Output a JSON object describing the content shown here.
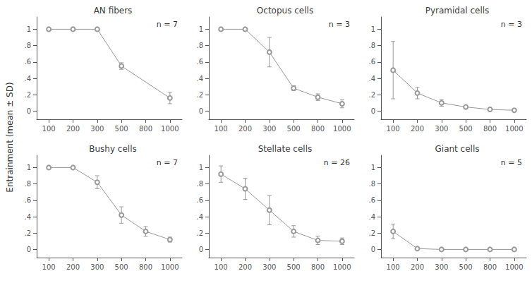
{
  "ylabel": "Entrainment (mean ± SD)",
  "chart_data": [
    {
      "type": "line",
      "title": "AN fibers",
      "annotations": [
        "n = 7"
      ],
      "categories": [
        "100",
        "200",
        "300",
        "500",
        "800",
        "1000"
      ],
      "values": [
        1.0,
        1.0,
        1.0,
        0.55,
        null,
        0.16
      ],
      "yerr": [
        0.0,
        0.0,
        0.0,
        0.04,
        null,
        0.07
      ],
      "color": "#999999",
      "marker": "circle",
      "grid": false,
      "ylim": [
        -0.1,
        1.15
      ],
      "yticks": [
        0,
        {
          "value": 0.2,
          "label": ".2"
        },
        {
          "value": 0.4,
          "label": ".4"
        },
        {
          "value": 0.6,
          "label": ".6"
        },
        {
          "value": 0.8,
          "label": ".8"
        },
        1
      ]
    },
    {
      "type": "line",
      "title": "Octopus cells",
      "annotations": [
        "n = 3"
      ],
      "categories": [
        "100",
        "200",
        "300",
        "500",
        "800",
        "1000"
      ],
      "values": [
        1.0,
        1.0,
        0.72,
        0.28,
        0.17,
        0.09
      ],
      "yerr": [
        0.0,
        0.0,
        0.18,
        0.03,
        0.04,
        0.05
      ],
      "color": "#999999",
      "marker": "circle",
      "grid": false,
      "ylim": [
        -0.1,
        1.15
      ],
      "yticks": [
        0,
        {
          "value": 0.2,
          "label": ".2"
        },
        {
          "value": 0.4,
          "label": ".4"
        },
        {
          "value": 0.6,
          "label": ".6"
        },
        {
          "value": 0.8,
          "label": ".8"
        },
        1
      ]
    },
    {
      "type": "line",
      "title": "Pyramidal cells",
      "annotations": [
        "n = 3"
      ],
      "categories": [
        "100",
        "200",
        "300",
        "500",
        "800",
        "1000"
      ],
      "values": [
        0.5,
        0.22,
        0.1,
        0.05,
        0.02,
        0.01
      ],
      "yerr": [
        0.35,
        0.07,
        0.04,
        0.02,
        0.01,
        0.005
      ],
      "color": "#999999",
      "marker": "circle",
      "grid": false,
      "ylim": [
        -0.1,
        1.15
      ],
      "yticks": [
        0,
        {
          "value": 0.2,
          "label": ".2"
        },
        {
          "value": 0.4,
          "label": ".4"
        },
        {
          "value": 0.6,
          "label": ".6"
        },
        {
          "value": 0.8,
          "label": ".8"
        },
        1
      ]
    },
    {
      "type": "line",
      "title": "Bushy cells",
      "annotations": [
        "n = 7"
      ],
      "categories": [
        "100",
        "200",
        "300",
        "500",
        "800",
        "1000"
      ],
      "values": [
        1.0,
        1.0,
        0.82,
        0.42,
        0.22,
        0.12
      ],
      "yerr": [
        0.0,
        0.0,
        0.08,
        0.1,
        0.06,
        0.03
      ],
      "color": "#999999",
      "marker": "circle",
      "grid": false,
      "ylim": [
        -0.1,
        1.15
      ],
      "yticks": [
        0,
        {
          "value": 0.2,
          "label": ".2"
        },
        {
          "value": 0.4,
          "label": ".4"
        },
        {
          "value": 0.6,
          "label": ".6"
        },
        {
          "value": 0.8,
          "label": ".8"
        },
        1
      ]
    },
    {
      "type": "line",
      "title": "Stellate cells",
      "annotations": [
        "n = 26"
      ],
      "categories": [
        "100",
        "200",
        "300",
        "500",
        "800",
        "1000"
      ],
      "values": [
        0.92,
        0.74,
        0.48,
        0.22,
        0.11,
        0.1
      ],
      "yerr": [
        0.1,
        0.13,
        0.18,
        0.07,
        0.05,
        0.04
      ],
      "color": "#999999",
      "marker": "circle",
      "grid": false,
      "ylim": [
        -0.1,
        1.15
      ],
      "yticks": [
        0,
        {
          "value": 0.2,
          "label": ".2"
        },
        {
          "value": 0.4,
          "label": ".4"
        },
        {
          "value": 0.6,
          "label": ".6"
        },
        {
          "value": 0.8,
          "label": ".8"
        },
        1
      ]
    },
    {
      "type": "line",
      "title": "Giant cells",
      "annotations": [
        "n = 5"
      ],
      "categories": [
        "100",
        "200",
        "300",
        "500",
        "800",
        "1000"
      ],
      "values": [
        0.22,
        0.01,
        0.0,
        0.0,
        0.0,
        0.0
      ],
      "yerr": [
        0.09,
        0.01,
        0.0,
        0.0,
        0.0,
        0.0
      ],
      "color": "#999999",
      "marker": "circle",
      "grid": false,
      "ylim": [
        -0.1,
        1.15
      ],
      "yticks": [
        0,
        {
          "value": 0.2,
          "label": ".2"
        },
        {
          "value": 0.4,
          "label": ".4"
        },
        {
          "value": 0.6,
          "label": ".6"
        },
        {
          "value": 0.8,
          "label": ".8"
        },
        1
      ]
    }
  ]
}
